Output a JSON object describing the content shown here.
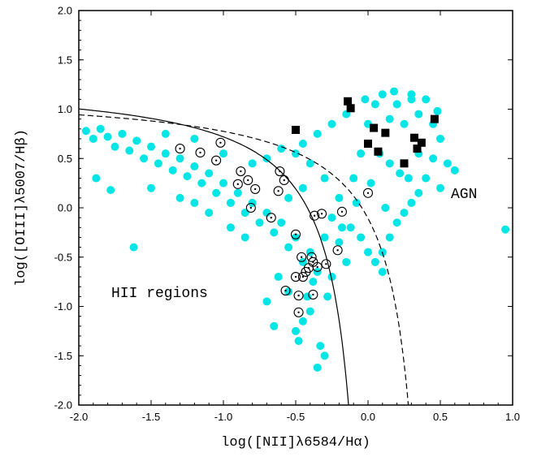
{
  "chart_data": {
    "type": "scatter",
    "title": "",
    "xlabel": "log([NII]λ6584/Hα)",
    "ylabel": "log([OIII]λ5007/Hβ)",
    "xlim": [
      -2.0,
      1.0
    ],
    "ylim": [
      -2.0,
      2.0
    ],
    "xticks": [
      "-2.0",
      "-1.5",
      "-1.0",
      "-0.5",
      "0.0",
      "0.5",
      "1.0"
    ],
    "yticks": [
      "-2.0",
      "-1.5",
      "-1.0",
      "-0.5",
      "0.0",
      "0.5",
      "1.0",
      "1.5",
      "2.0"
    ],
    "grid": false,
    "annotations": [
      {
        "text": "HII regions",
        "x": -1.78,
        "y": -0.85
      },
      {
        "text": "AGN",
        "x": 0.53,
        "y": 0.14
      }
    ],
    "colors": {
      "cloud": "#00e5e5",
      "marker": "#000000",
      "axis": "#000000"
    },
    "series": [
      {
        "marker": "cyan-filled-circle",
        "note_density": "dense point cloud",
        "points": [
          [
            -1.95,
            0.78
          ],
          [
            -1.9,
            0.7
          ],
          [
            -1.85,
            0.8
          ],
          [
            -1.8,
            0.72
          ],
          [
            -1.75,
            0.62
          ],
          [
            -1.7,
            0.75
          ],
          [
            -1.65,
            0.58
          ],
          [
            -1.6,
            0.68
          ],
          [
            -1.55,
            0.5
          ],
          [
            -1.5,
            0.62
          ],
          [
            -1.45,
            0.45
          ],
          [
            -1.4,
            0.55
          ],
          [
            -1.35,
            0.38
          ],
          [
            -1.3,
            0.5
          ],
          [
            -1.25,
            0.32
          ],
          [
            -1.2,
            0.42
          ],
          [
            -1.15,
            0.25
          ],
          [
            -1.1,
            0.35
          ],
          [
            -1.05,
            0.15
          ],
          [
            -1.0,
            0.25
          ],
          [
            -0.95,
            0.05
          ],
          [
            -0.9,
            0.15
          ],
          [
            -0.85,
            -0.05
          ],
          [
            -0.8,
            0.05
          ],
          [
            -0.75,
            -0.15
          ],
          [
            -0.7,
            -0.05
          ],
          [
            -0.65,
            -0.25
          ],
          [
            -0.6,
            -0.15
          ],
          [
            -0.55,
            -0.4
          ],
          [
            -0.5,
            -0.3
          ],
          [
            -0.45,
            -0.55
          ],
          [
            -0.4,
            -0.45
          ],
          [
            -0.38,
            -0.75
          ],
          [
            -0.35,
            -0.65
          ],
          [
            -0.42,
            -0.9
          ],
          [
            -0.4,
            -1.05
          ],
          [
            -0.45,
            -1.15
          ],
          [
            -0.5,
            -1.25
          ],
          [
            -0.33,
            -1.4
          ],
          [
            -0.3,
            -1.5
          ],
          [
            -0.35,
            -1.62
          ],
          [
            -1.88,
            0.3
          ],
          [
            -1.78,
            0.18
          ],
          [
            -1.62,
            -0.4
          ],
          [
            -1.5,
            0.2
          ],
          [
            -1.3,
            0.1
          ],
          [
            -1.2,
            0.05
          ],
          [
            -1.1,
            -0.05
          ],
          [
            -0.95,
            -0.2
          ],
          [
            -0.85,
            -0.3
          ],
          [
            -0.55,
            -0.85
          ],
          [
            -0.62,
            -0.7
          ],
          [
            -0.3,
            -0.3
          ],
          [
            -0.25,
            -0.1
          ],
          [
            -0.2,
            0.1
          ],
          [
            -0.3,
            0.3
          ],
          [
            -0.4,
            0.45
          ],
          [
            -0.5,
            0.55
          ],
          [
            -0.6,
            0.6
          ],
          [
            -0.7,
            0.5
          ],
          [
            -0.8,
            0.45
          ],
          [
            -1.0,
            0.55
          ],
          [
            -1.2,
            0.7
          ],
          [
            -1.4,
            0.75
          ],
          [
            -0.45,
            0.2
          ],
          [
            -0.55,
            0.1
          ],
          [
            -0.2,
            -0.35
          ],
          [
            -0.15,
            -0.55
          ],
          [
            -0.12,
            -0.2
          ],
          [
            -0.1,
            0.3
          ],
          [
            -0.05,
            0.55
          ],
          [
            0.0,
            0.85
          ],
          [
            0.05,
            1.05
          ],
          [
            0.1,
            1.15
          ],
          [
            0.15,
            0.9
          ],
          [
            0.2,
            1.05
          ],
          [
            0.25,
            0.85
          ],
          [
            0.3,
            1.1
          ],
          [
            0.35,
            0.95
          ],
          [
            0.4,
            1.1
          ],
          [
            0.45,
            0.85
          ],
          [
            0.5,
            0.7
          ],
          [
            0.45,
            0.5
          ],
          [
            0.4,
            0.3
          ],
          [
            0.35,
            0.15
          ],
          [
            0.3,
            0.05
          ],
          [
            0.25,
            -0.05
          ],
          [
            0.2,
            -0.15
          ],
          [
            0.15,
            -0.3
          ],
          [
            0.1,
            -0.45
          ],
          [
            0.05,
            -0.55
          ],
          [
            0.0,
            -0.45
          ],
          [
            -0.05,
            -0.3
          ],
          [
            0.5,
            0.2
          ],
          [
            0.55,
            0.45
          ],
          [
            0.6,
            0.38
          ],
          [
            0.48,
            0.98
          ],
          [
            0.3,
            1.15
          ],
          [
            0.18,
            1.18
          ],
          [
            -0.02,
            1.1
          ],
          [
            -0.15,
            0.95
          ],
          [
            -0.25,
            0.85
          ],
          [
            -0.35,
            0.75
          ],
          [
            -0.45,
            0.65
          ],
          [
            0.12,
            0.0
          ],
          [
            0.22,
            0.35
          ],
          [
            0.08,
            0.55
          ],
          [
            0.35,
            0.55
          ],
          [
            0.28,
            0.3
          ],
          [
            0.15,
            0.45
          ],
          [
            0.02,
            0.25
          ],
          [
            -0.08,
            0.05
          ],
          [
            -0.18,
            -0.2
          ],
          [
            0.95,
            -0.22
          ],
          [
            0.1,
            -0.65
          ],
          [
            -0.25,
            -0.7
          ],
          [
            -0.48,
            -1.35
          ],
          [
            -0.65,
            -1.2
          ],
          [
            -0.7,
            -0.95
          ],
          [
            -0.28,
            -0.9
          ]
        ]
      },
      {
        "marker": "open-circle-with-dot",
        "points": [
          [
            -1.3,
            0.6
          ],
          [
            -1.16,
            0.56
          ],
          [
            -1.02,
            0.66
          ],
          [
            -1.05,
            0.48
          ],
          [
            -0.88,
            0.37
          ],
          [
            -0.83,
            0.28
          ],
          [
            -0.9,
            0.24
          ],
          [
            -0.78,
            0.19
          ],
          [
            -0.81,
            0.0
          ],
          [
            -0.61,
            0.37
          ],
          [
            -0.58,
            0.28
          ],
          [
            -0.62,
            0.17
          ],
          [
            -0.67,
            -0.1
          ],
          [
            -0.37,
            -0.08
          ],
          [
            -0.32,
            -0.06
          ],
          [
            -0.18,
            -0.04
          ],
          [
            0.0,
            0.15
          ],
          [
            -0.5,
            -0.27
          ],
          [
            -0.46,
            -0.5
          ],
          [
            -0.39,
            -0.5
          ],
          [
            -0.38,
            -0.55
          ],
          [
            -0.35,
            -0.6
          ],
          [
            -0.29,
            -0.57
          ],
          [
            -0.41,
            -0.61
          ],
          [
            -0.43,
            -0.65
          ],
          [
            -0.45,
            -0.7
          ],
          [
            -0.5,
            -0.7
          ],
          [
            -0.57,
            -0.84
          ],
          [
            -0.38,
            -0.88
          ],
          [
            -0.48,
            -0.89
          ],
          [
            -0.48,
            -1.06
          ],
          [
            -0.21,
            -0.43
          ]
        ]
      },
      {
        "marker": "filled-square",
        "points": [
          [
            -0.14,
            1.08
          ],
          [
            -0.12,
            1.01
          ],
          [
            0.46,
            0.9
          ],
          [
            -0.5,
            0.79
          ],
          [
            0.04,
            0.81
          ],
          [
            0.12,
            0.76
          ],
          [
            0.32,
            0.71
          ],
          [
            0.37,
            0.66
          ],
          [
            0.0,
            0.65
          ],
          [
            0.34,
            0.6
          ],
          [
            0.07,
            0.57
          ],
          [
            0.25,
            0.45
          ]
        ]
      }
    ],
    "curves": [
      {
        "style": "solid",
        "equation": "y = 0.61/(x - 0.05) + 1.3"
      },
      {
        "style": "dashed",
        "equation": "y = 0.61/(x - 0.47) + 1.19"
      }
    ]
  }
}
